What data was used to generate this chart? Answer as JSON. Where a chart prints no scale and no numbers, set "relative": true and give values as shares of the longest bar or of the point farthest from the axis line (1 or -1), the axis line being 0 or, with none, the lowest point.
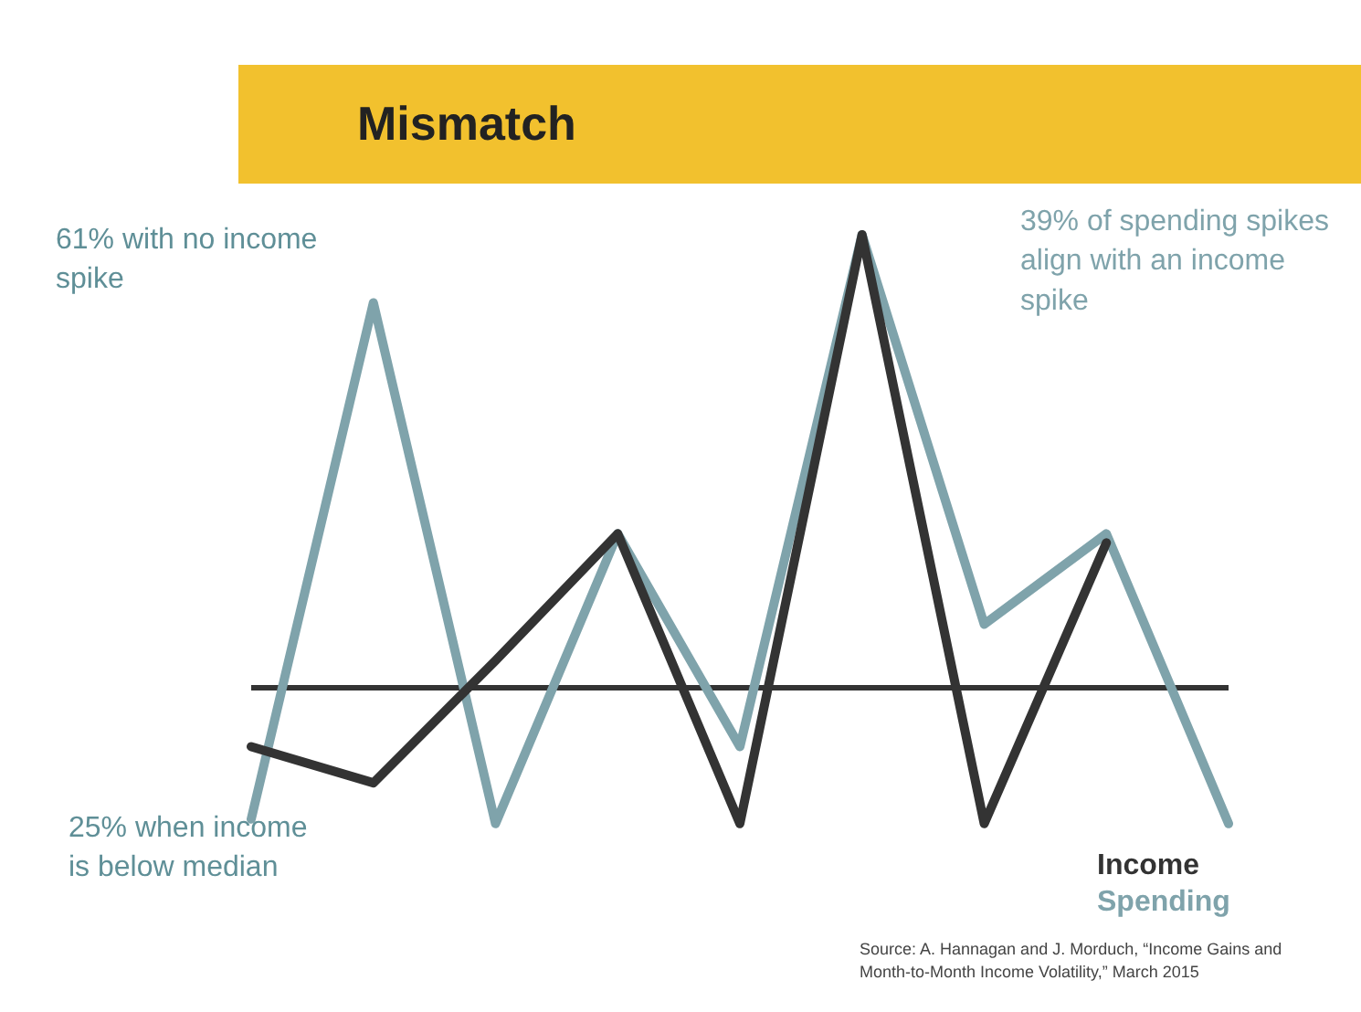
{
  "chart_data": {
    "type": "line",
    "title": "Mismatch",
    "relative": true,
    "marker": "none",
    "line_style": "solid",
    "categories": [
      null,
      null,
      null,
      null,
      null,
      null,
      null,
      null,
      null
    ],
    "series": [
      {
        "name": "Income",
        "color": "#333333",
        "values": [
          -0.13,
          -0.21,
          0.06,
          0.34,
          -0.3,
          1,
          -0.3,
          0.32,
          null
        ]
      },
      {
        "name": "Spending",
        "color": "#7fa3ab",
        "values": [
          -0.29,
          0.85,
          -0.3,
          0.34,
          -0.13,
          1,
          0.14,
          0.34,
          -0.3
        ]
      }
    ],
    "annotations": [
      "61% with no income spike",
      "39% of spending spikes align with an income spike",
      "25% when income is below median",
      "Source: A. Hannagan and J. Morduch, “Income Gains and Month-to-Month Income Volatility,” March 2015"
    ]
  }
}
